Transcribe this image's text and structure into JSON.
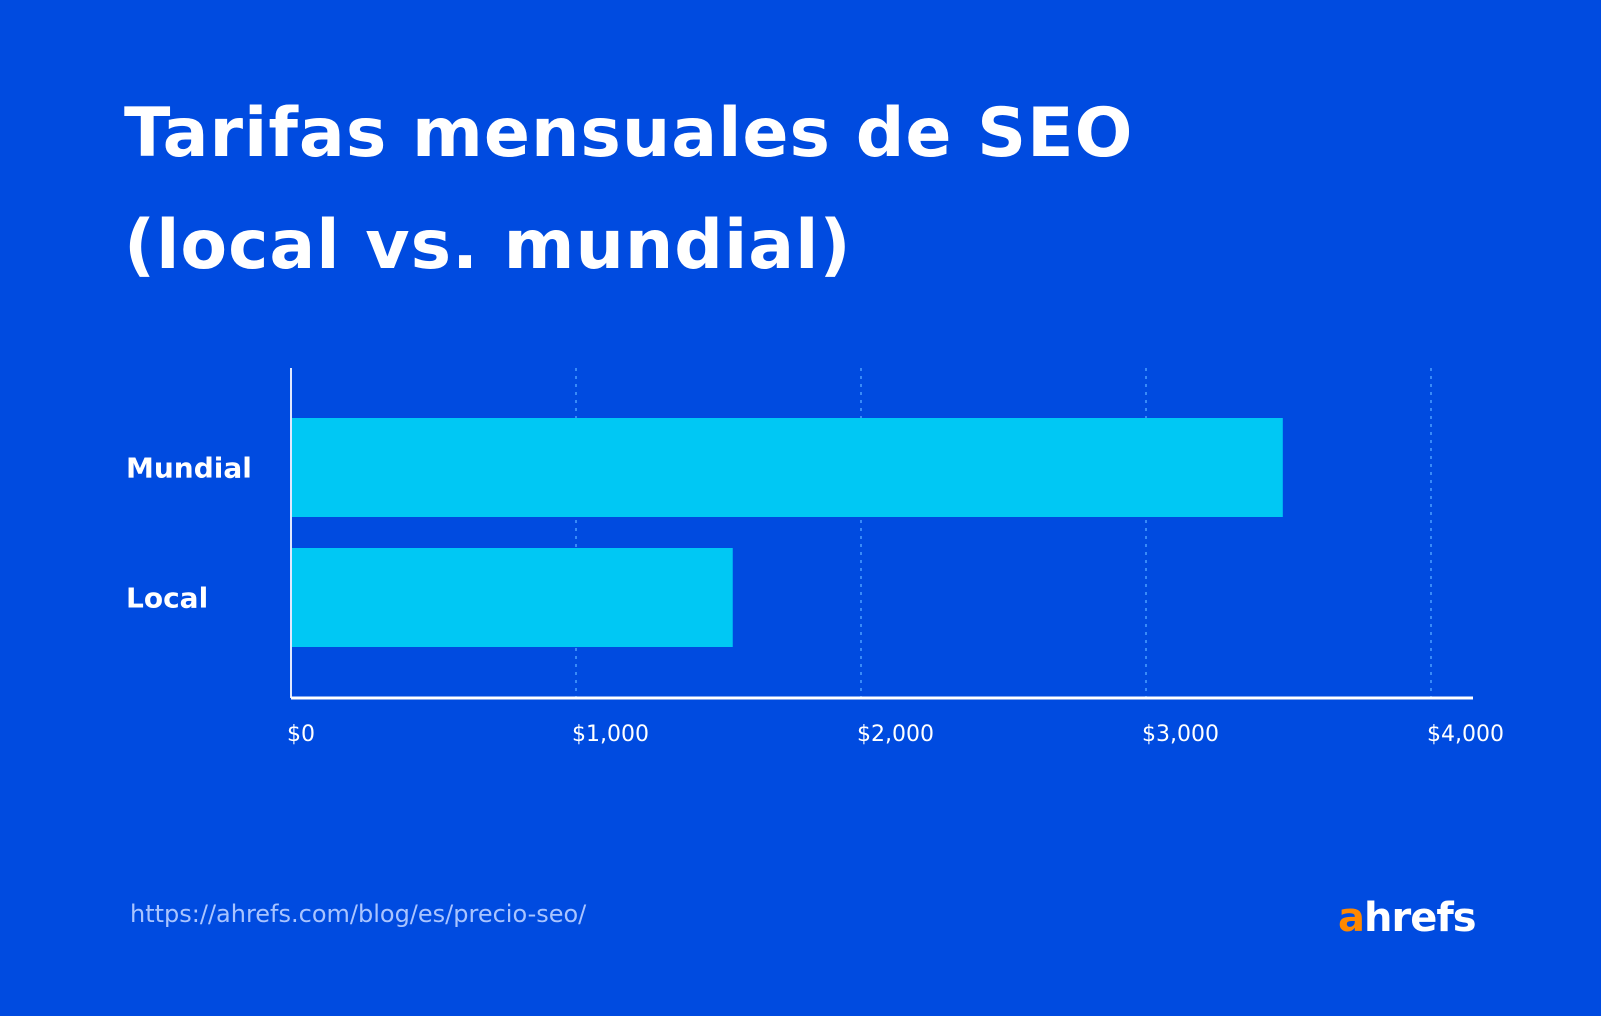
{
  "title_line1": "Tarifas mensuales de SEO",
  "title_line2": "(local vs. mundial)",
  "footer_url": "https://ahrefs.com/blog/es/precio-seo/",
  "logo": {
    "a": "a",
    "rest": "hrefs"
  },
  "colors": {
    "background": "#004be0",
    "bar": "#00c8f4",
    "grid": "#4aa0ff",
    "logo_accent": "#ff8800"
  },
  "chart_data": {
    "type": "bar",
    "orientation": "horizontal",
    "title": "Tarifas mensuales de SEO (local vs. mundial)",
    "categories": [
      "Mundial",
      "Local"
    ],
    "values": [
      3480,
      1550
    ],
    "xlabel": "",
    "ylabel": "",
    "xlim": [
      0,
      4000
    ],
    "xticks": [
      0,
      1000,
      2000,
      3000,
      4000
    ],
    "xtick_labels": [
      "$0",
      "$1,000",
      "$2,000",
      "$3,000",
      "$4,000"
    ],
    "grid": "vertical dotted"
  }
}
